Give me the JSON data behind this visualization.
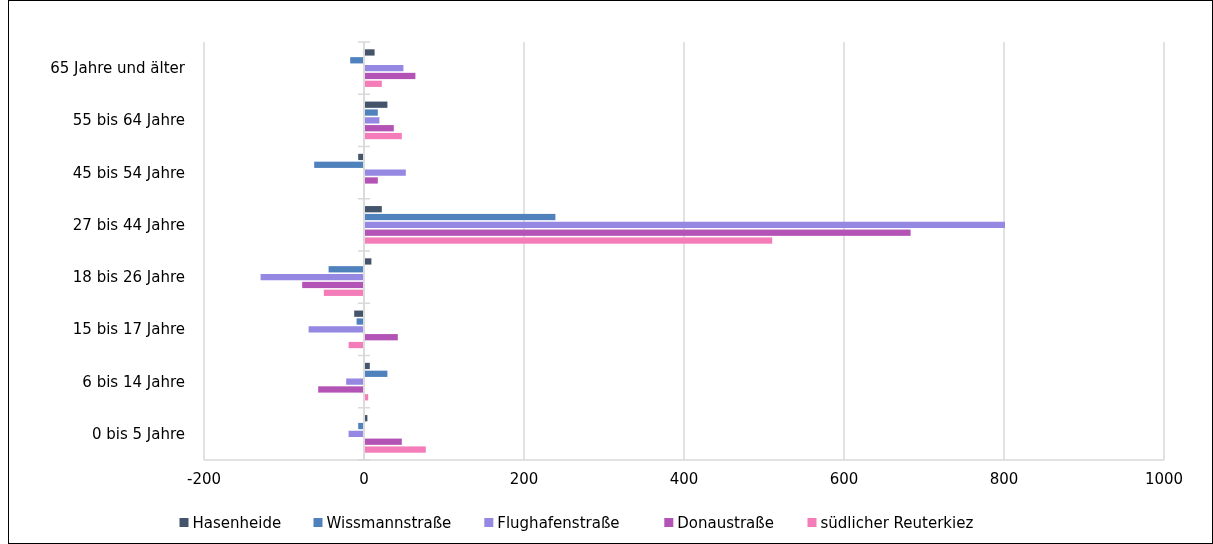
{
  "chart_data": {
    "type": "bar",
    "orientation": "horizontal",
    "categories": [
      "65 Jahre und älter",
      "55 bis 64 Jahre",
      "45 bis 54 Jahre",
      "27 bis 44 Jahre",
      "18 bis 26 Jahre",
      "15 bis 17 Jahre",
      "6 bis 14 Jahre",
      "0 bis 5 Jahre"
    ],
    "series": [
      {
        "name": "Hasenheide",
        "color": "#44546a",
        "values": [
          12,
          28,
          -6,
          21,
          8,
          -11,
          6,
          3
        ]
      },
      {
        "name": "Wissmannstraße",
        "color": "#4f81bd",
        "values": [
          -16,
          16,
          -61,
          238,
          -43,
          -8,
          28,
          -6
        ]
      },
      {
        "name": "Flughafenstraße",
        "color": "#9488e2",
        "values": [
          48,
          18,
          51,
          800,
          -128,
          -68,
          -21,
          -18
        ]
      },
      {
        "name": "Donaustraße",
        "color": "#b353b5",
        "values": [
          63,
          36,
          16,
          682,
          -76,
          41,
          -56,
          46
        ]
      },
      {
        "name": "südlicher Reuterkiez",
        "color": "#f47cb8",
        "values": [
          21,
          46,
          0,
          509,
          -49,
          -18,
          4,
          76
        ]
      }
    ],
    "xlim": [
      -200,
      1000
    ],
    "xticks": [
      -200,
      0,
      200,
      400,
      600,
      800,
      1000
    ],
    "grid": "x",
    "legend": "bottom"
  }
}
